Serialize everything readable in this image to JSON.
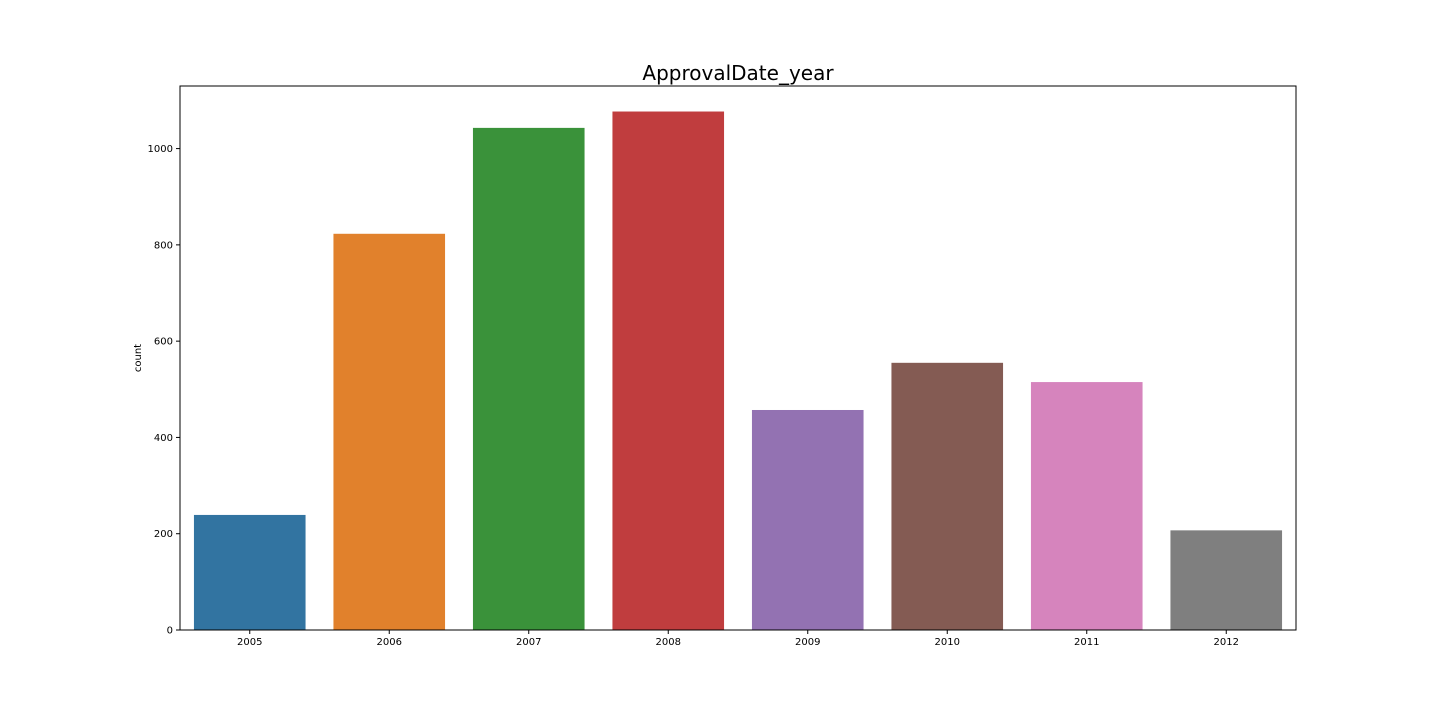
{
  "chart_data": {
    "type": "bar",
    "title": "ApprovalDate_year",
    "xlabel": "",
    "ylabel": "count",
    "categories": [
      "2005",
      "2006",
      "2007",
      "2008",
      "2009",
      "2010",
      "2011",
      "2012"
    ],
    "values": [
      239,
      823,
      1043,
      1077,
      457,
      555,
      515,
      207
    ],
    "colors": [
      "#3274a1",
      "#e1812c",
      "#3a923a",
      "#c03d3e",
      "#9372b2",
      "#845b53",
      "#d684bd",
      "#7f7f7f"
    ],
    "ylim": [
      0,
      1130
    ],
    "yticks": [
      0,
      200,
      400,
      600,
      800,
      1000
    ],
    "ytick_labels": [
      "0",
      "200",
      "400",
      "600",
      "800",
      "1000"
    ],
    "grid": false,
    "legend": "none"
  }
}
